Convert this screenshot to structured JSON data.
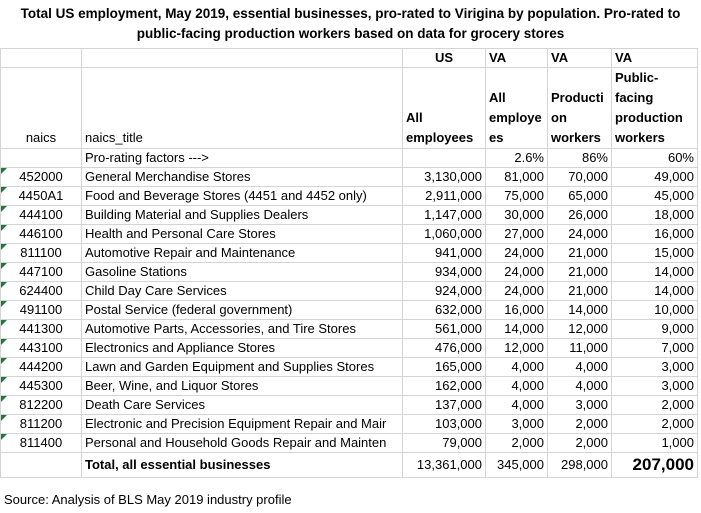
{
  "title": "Total US employment, May 2019, essential businesses, pro-rated to Virigina by population. Pro-rated to public-facing production workers based on data for grocery stores",
  "group_headers": [
    "US",
    "VA",
    "VA",
    "VA"
  ],
  "headers": {
    "naics": "naics",
    "naics_title": "naics_title",
    "all_employees": "All employees",
    "va_all_employees": "All employe es",
    "production_workers": "Producti on workers",
    "public_facing": "Public-facing production workers"
  },
  "factors": {
    "label": "Pro-rating factors --->",
    "va_all": "2.6%",
    "production": "86%",
    "public": "60%"
  },
  "rows": [
    {
      "naics": "452000",
      "title": "General Merchandise Stores",
      "us": "3,130,000",
      "va": "81,000",
      "prod": "70,000",
      "pub": "49,000"
    },
    {
      "naics": "4450A1",
      "title": "Food and Beverage Stores (4451 and 4452 only)",
      "us": "2,911,000",
      "va": "75,000",
      "prod": "65,000",
      "pub": "45,000"
    },
    {
      "naics": "444100",
      "title": "Building Material and Supplies Dealers",
      "us": "1,147,000",
      "va": "30,000",
      "prod": "26,000",
      "pub": "18,000"
    },
    {
      "naics": "446100",
      "title": "Health and Personal Care Stores",
      "us": "1,060,000",
      "va": "27,000",
      "prod": "24,000",
      "pub": "16,000"
    },
    {
      "naics": "811100",
      "title": "Automotive Repair and Maintenance",
      "us": "941,000",
      "va": "24,000",
      "prod": "21,000",
      "pub": "15,000"
    },
    {
      "naics": "447100",
      "title": "Gasoline Stations",
      "us": "934,000",
      "va": "24,000",
      "prod": "21,000",
      "pub": "14,000"
    },
    {
      "naics": "624400",
      "title": "Child Day Care Services",
      "us": "924,000",
      "va": "24,000",
      "prod": "21,000",
      "pub": "14,000"
    },
    {
      "naics": "491100",
      "title": "Postal Service (federal government)",
      "us": "632,000",
      "va": "16,000",
      "prod": "14,000",
      "pub": "10,000"
    },
    {
      "naics": "441300",
      "title": "Automotive Parts, Accessories, and Tire Stores",
      "us": "561,000",
      "va": "14,000",
      "prod": "12,000",
      "pub": "9,000"
    },
    {
      "naics": "443100",
      "title": "Electronics and Appliance Stores",
      "us": "476,000",
      "va": "12,000",
      "prod": "11,000",
      "pub": "7,000"
    },
    {
      "naics": "444200",
      "title": "Lawn and Garden Equipment and Supplies Stores",
      "us": "165,000",
      "va": "4,000",
      "prod": "4,000",
      "pub": "3,000"
    },
    {
      "naics": "445300",
      "title": "Beer, Wine, and Liquor Stores",
      "us": "162,000",
      "va": "4,000",
      "prod": "4,000",
      "pub": "3,000"
    },
    {
      "naics": "812200",
      "title": "Death Care Services",
      "us": "137,000",
      "va": "4,000",
      "prod": "3,000",
      "pub": "2,000"
    },
    {
      "naics": "811200",
      "title": "Electronic and Precision Equipment Repair and Mair",
      "us": "103,000",
      "va": "3,000",
      "prod": "2,000",
      "pub": "2,000"
    },
    {
      "naics": "811400",
      "title": "Personal and Household Goods Repair and Mainten",
      "us": "79,000",
      "va": "2,000",
      "prod": "2,000",
      "pub": "1,000"
    }
  ],
  "total": {
    "label": "Total, all essential businesses",
    "us": "13,361,000",
    "va": "345,000",
    "prod": "298,000",
    "pub": "207,000"
  },
  "source": "Source:  Analysis of BLS May 2019 industry profile",
  "colors": {
    "grid": "#d4d4d4",
    "error_indicator": "#1f7a3a"
  }
}
